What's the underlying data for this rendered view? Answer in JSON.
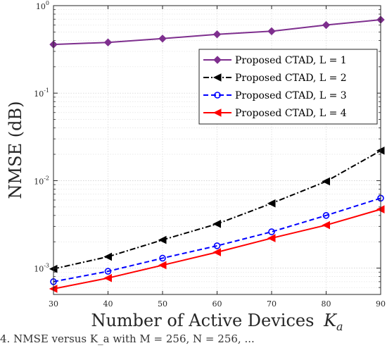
{
  "chart_data": {
    "type": "line",
    "xlabel": "Number of Active Devices",
    "xlabel_math": "K",
    "xlabel_math_sub": "a",
    "ylabel": "NMSE (dB)",
    "x": [
      30,
      40,
      50,
      60,
      70,
      80,
      90
    ],
    "xlim": [
      30,
      90
    ],
    "xticks": [
      "30",
      "40",
      "50",
      "60",
      "70",
      "80",
      "90"
    ],
    "ylim": [
      0.0005,
      1
    ],
    "yscale": "log",
    "yticks": [
      {
        "value": 0.001,
        "base": "10",
        "exp": "-3"
      },
      {
        "value": 0.01,
        "base": "10",
        "exp": "-2"
      },
      {
        "value": 0.1,
        "base": "10",
        "exp": "-1"
      },
      {
        "value": 1,
        "base": "10",
        "exp": "0"
      }
    ],
    "grid": true,
    "legend_position": "top-right",
    "series": [
      {
        "name": "Proposed CTAD, L = 1",
        "color": "#7E2F8E",
        "dash": "solid",
        "marker": "diamond",
        "values": [
          0.36,
          0.38,
          0.42,
          0.47,
          0.51,
          0.6,
          0.69
        ]
      },
      {
        "name": "Proposed CTAD, L = 2",
        "color": "#000000",
        "dash": "dashdot",
        "marker": "triangle-left",
        "values": [
          0.00098,
          0.00135,
          0.0021,
          0.0032,
          0.0055,
          0.0098,
          0.022
        ]
      },
      {
        "name": "Proposed CTAD, L = 3",
        "color": "#0000FF",
        "dash": "dashed",
        "marker": "circle",
        "values": [
          0.0007,
          0.00092,
          0.0013,
          0.0018,
          0.0026,
          0.004,
          0.0063
        ]
      },
      {
        "name": "Proposed CTAD, L = 4",
        "color": "#FF0000",
        "dash": "solid",
        "marker": "triangle-left",
        "values": [
          0.00058,
          0.00077,
          0.00108,
          0.00152,
          0.0022,
          0.0031,
          0.0047
        ]
      }
    ]
  },
  "caption": "4. NMSE versus K_a with M = 256, N = 256, ..."
}
